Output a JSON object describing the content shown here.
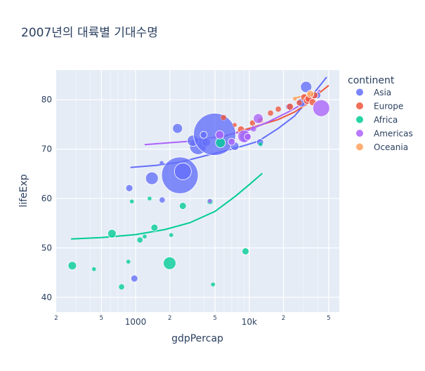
{
  "chart_data": {
    "type": "scatter",
    "title": "2007년의 대륙별 기대수명",
    "xlabel": "gdpPercap",
    "ylabel": "lifeExp",
    "x_scale": "log",
    "xlim": [
      200,
      62000
    ],
    "ylim": [
      37,
      86
    ],
    "x_ticks": [
      {
        "value": 200,
        "label": "2"
      },
      {
        "value": 500,
        "label": "5"
      },
      {
        "value": 1000,
        "label": "1000"
      },
      {
        "value": 2000,
        "label": "2"
      },
      {
        "value": 5000,
        "label": "5"
      },
      {
        "value": 10000,
        "label": "10k"
      },
      {
        "value": 20000,
        "label": "2"
      },
      {
        "value": 50000,
        "label": "5"
      }
    ],
    "y_ticks": [
      40,
      50,
      60,
      70,
      80
    ],
    "grid": true,
    "legend_title": "continent",
    "legend_position": "right",
    "series": [
      {
        "name": "Asia",
        "color": "#636efa",
        "points": [
          [
            974.6,
            43.8,
            5
          ],
          [
            1391,
            64.1,
            9
          ],
          [
            1713,
            59.7,
            4
          ],
          [
            2452,
            64.7,
            26
          ],
          [
            2605,
            65.5,
            12
          ],
          [
            3540,
            70.6,
            12
          ],
          [
            3190,
            71.7,
            8
          ],
          [
            4185,
            71.4,
            6
          ],
          [
            4959,
            73.0,
            30
          ],
          [
            7458,
            70.6,
            6
          ],
          [
            9254,
            72.5,
            8
          ],
          [
            12452,
            71.4,
            5
          ],
          [
            2338,
            74.2,
            7
          ],
          [
            31657,
            82.6,
            8
          ],
          [
            28718,
            79.4,
            6
          ],
          [
            39725,
            80.9,
            5
          ],
          [
            22316,
            78.6,
            5
          ],
          [
            3970,
            72.9,
            5
          ],
          [
            880,
            62.1,
            5
          ],
          [
            1694,
            67.2,
            3
          ]
        ],
        "trend": [
          [
            900,
            66.3
          ],
          [
            1500,
            66.7
          ],
          [
            2500,
            67.4
          ],
          [
            4000,
            68.6
          ],
          [
            6000,
            69.6
          ],
          [
            9000,
            70.7
          ],
          [
            12000,
            71.6
          ],
          [
            18000,
            74.2
          ],
          [
            25000,
            76.7
          ],
          [
            35000,
            80.6
          ],
          [
            48000,
            84.6
          ]
        ]
      },
      {
        "name": "Europe",
        "color": "#ef553b",
        "points": [
          [
            5937,
            76.4,
            4
          ],
          [
            7446,
            74.9,
            3
          ],
          [
            8458,
            74.0,
            5
          ],
          [
            10680,
            75.3,
            4
          ],
          [
            12570,
            75.8,
            4
          ],
          [
            15390,
            77.3,
            4
          ],
          [
            18009,
            78.1,
            4
          ],
          [
            22833,
            78.6,
            5
          ],
          [
            27538,
            79.4,
            4
          ],
          [
            30470,
            80.5,
            5
          ],
          [
            32170,
            79.8,
            5
          ],
          [
            33207,
            80.2,
            5
          ],
          [
            36126,
            79.5,
            5
          ],
          [
            37506,
            80.9,
            5
          ]
        ],
        "trend": [
          [
            5900,
            72.5
          ],
          [
            9000,
            73.9
          ],
          [
            13000,
            75.0
          ],
          [
            18000,
            76.0
          ],
          [
            25000,
            77.5
          ],
          [
            33000,
            79.3
          ],
          [
            40000,
            81.1
          ],
          [
            50000,
            82.9
          ]
        ]
      },
      {
        "name": "Africa",
        "color": "#00cc96",
        "points": [
          [
            277,
            46.4,
            6
          ],
          [
            430,
            45.7,
            3
          ],
          [
            619,
            52.9,
            6
          ],
          [
            752,
            42.1,
            4
          ],
          [
            863,
            47.2,
            3
          ],
          [
            926,
            59.4,
            3
          ],
          [
            1091,
            51.6,
            4
          ],
          [
            1202,
            52.3,
            3
          ],
          [
            1327,
            60.0,
            3
          ],
          [
            1464,
            54.1,
            5
          ],
          [
            1991,
            46.9,
            9
          ],
          [
            2602,
            58.5,
            5
          ],
          [
            4513,
            59.4,
            4
          ],
          [
            5581,
            71.3,
            7
          ],
          [
            9269,
            49.3,
            5
          ],
          [
            12570,
            71.0,
            3
          ],
          [
            4797,
            42.6,
            3
          ],
          [
            2056,
            52.6,
            3
          ]
        ],
        "trend": [
          [
            270,
            51.8
          ],
          [
            500,
            52.1
          ],
          [
            1000,
            52.7
          ],
          [
            1800,
            53.7
          ],
          [
            3000,
            55.1
          ],
          [
            5000,
            57.4
          ],
          [
            7500,
            60.4
          ],
          [
            10000,
            62.8
          ],
          [
            13000,
            65.1
          ]
        ]
      },
      {
        "name": "Americas",
        "color": "#ab63fa",
        "points": [
          [
            43000,
            78.3,
            12
          ],
          [
            12000,
            76.2,
            7
          ],
          [
            9000,
            72.6,
            9
          ],
          [
            7000,
            71.5,
            5
          ],
          [
            5500,
            72.9,
            6
          ],
          [
            9700,
            72.5,
            5
          ],
          [
            4500,
            59.5,
            3
          ],
          [
            10900,
            74.1,
            4
          ]
        ],
        "trend": [
          [
            1200,
            70.9
          ],
          [
            3000,
            71.6
          ],
          [
            6000,
            72.7
          ],
          [
            10000,
            73.9
          ],
          [
            15000,
            75.6
          ],
          [
            22000,
            77.5
          ],
          [
            32000,
            79.6
          ],
          [
            42000,
            82.0
          ]
        ]
      },
      {
        "name": "Oceania",
        "color": "#ffa15a",
        "points": [
          [
            25185,
            80.2,
            3
          ],
          [
            34435,
            81.2,
            5
          ]
        ],
        "trend": [
          [
            25000,
            80.3
          ],
          [
            28000,
            80.6
          ],
          [
            31000,
            80.9
          ],
          [
            34500,
            81.2
          ]
        ]
      }
    ]
  }
}
